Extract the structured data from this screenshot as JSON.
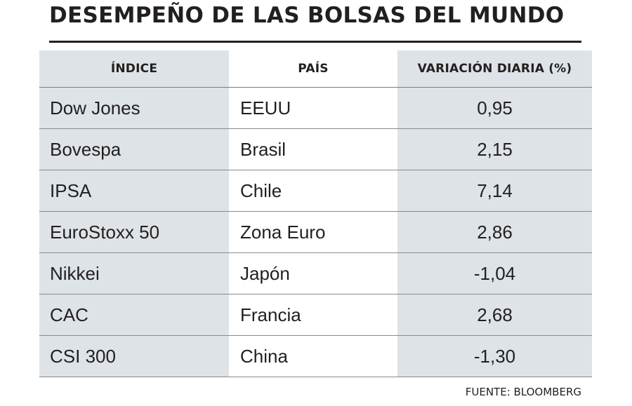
{
  "title": "DESEMPEÑO DE LAS BOLSAS DEL MUNDO",
  "source": "FUENTE: BLOOMBERG",
  "chart_data": {
    "type": "table",
    "title": "DESEMPEÑO DE LAS BOLSAS DEL MUNDO",
    "columns": [
      "ÍNDICE",
      "PAÍS",
      "VARIACIÓN DIARIA (%)"
    ],
    "rows": [
      [
        "Dow Jones",
        "EEUU",
        "0,95"
      ],
      [
        "Bovespa",
        "Brasil",
        "2,15"
      ],
      [
        "IPSA",
        "Chile",
        "7,14"
      ],
      [
        "EuroStoxx 50",
        "Zona Euro",
        "2,86"
      ],
      [
        "Nikkei",
        "Japón",
        "-1,04"
      ],
      [
        "CAC",
        "Francia",
        "2,68"
      ],
      [
        "CSI 300",
        "China",
        "-1,30"
      ]
    ],
    "values": [
      0.95,
      2.15,
      7.14,
      2.86,
      -1.04,
      2.68,
      -1.3
    ],
    "colors": {
      "shaded_column": "#dde3e6",
      "text": "#231f20"
    }
  }
}
